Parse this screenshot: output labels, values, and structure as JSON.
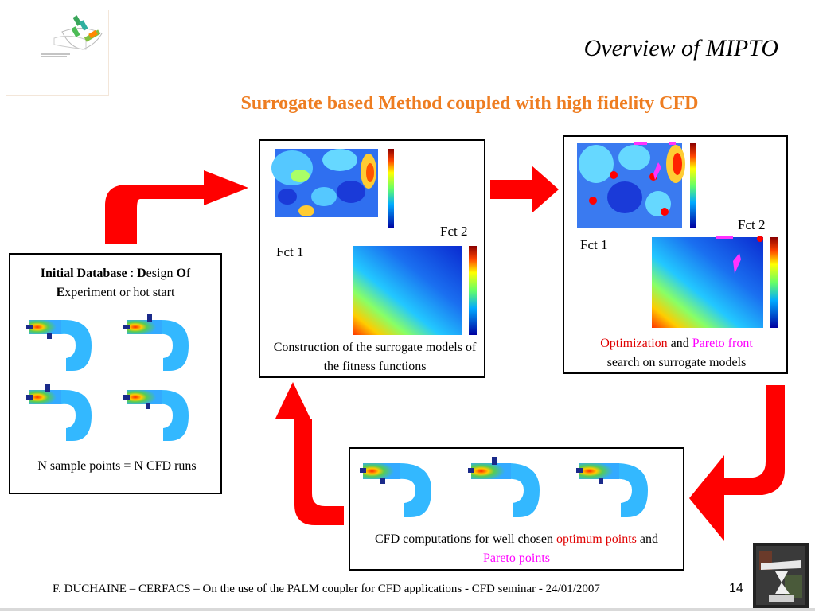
{
  "slide": {
    "title": "Overview of MIPTO",
    "subtitle": "Surrogate based Method coupled with high fidelity CFD",
    "footer": "F. DUCHAINE – CERFACS – On the use of the PALM coupler for CFD applications - CFD seminar - 24/01/2007",
    "page_number": "14"
  },
  "initial_db": {
    "term_bold": "Initial Database",
    "sep": " : ",
    "d": "D",
    "esign": "esign ",
    "o": "O",
    "f": "f",
    "e": "E",
    "rest": "xperiment or hot start",
    "caption": "N sample points = N CFD runs"
  },
  "surrogate": {
    "fct1": "Fct 1",
    "fct2": "Fct 2",
    "caption": "Construction of the surrogate models of the fitness functions"
  },
  "optim": {
    "fct1": "Fct 1",
    "fct2": "Fct 2",
    "word_optimization": "Optimization",
    "word_and": " and ",
    "word_pareto": "Pareto front",
    "line2": "search on surrogate models"
  },
  "cfd": {
    "text_a": "CFD computations for well chosen ",
    "word_optimum": "optimum points",
    "word_and": " and ",
    "word_pareto": "Pareto points"
  },
  "colors": {
    "accent_orange": "#ee7d21",
    "arrow_red": "#ff0000",
    "pareto_magenta": "#ff00ff"
  }
}
